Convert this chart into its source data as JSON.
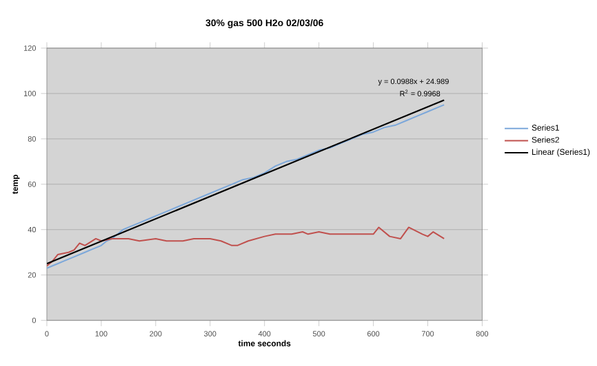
{
  "chart_data": {
    "type": "line",
    "title": "30% gas 500 H2o 02/03/06",
    "xlabel": "time seconds",
    "ylabel": "temp",
    "xlim": [
      0,
      800
    ],
    "xticks": [
      0,
      100,
      200,
      300,
      400,
      500,
      600,
      700,
      800
    ],
    "ylim": [
      0,
      120
    ],
    "yticks": [
      0,
      20,
      40,
      60,
      80,
      100,
      120
    ],
    "grid": "y",
    "legend": "right",
    "annotations": [
      "y = 0.0988x + 24.989",
      "R$^{2}$ = 0.9968"
    ],
    "series": [
      {
        "name": "Series1",
        "color": "#7ba7da",
        "x": [
          0,
          10,
          20,
          30,
          40,
          50,
          60,
          70,
          80,
          90,
          100,
          110,
          120,
          130,
          140,
          150,
          160,
          170,
          180,
          190,
          200,
          220,
          240,
          260,
          280,
          300,
          320,
          340,
          360,
          380,
          400,
          420,
          440,
          460,
          480,
          500,
          520,
          540,
          560,
          580,
          600,
          620,
          640,
          660,
          680,
          700,
          720,
          730
        ],
        "values": [
          23,
          24,
          25,
          26,
          27,
          28,
          29,
          30,
          31,
          32,
          33,
          35,
          36,
          38,
          40,
          41,
          42,
          43,
          44,
          45,
          46,
          48,
          50,
          52,
          54,
          56,
          58,
          60,
          62,
          63,
          65,
          68,
          70,
          71,
          73,
          75,
          76,
          78,
          80,
          82,
          83,
          85,
          86,
          88,
          90,
          92,
          94,
          95
        ]
      },
      {
        "name": "Series2",
        "color": "#c0504d",
        "x": [
          0,
          10,
          20,
          40,
          50,
          60,
          70,
          90,
          100,
          120,
          150,
          170,
          200,
          220,
          250,
          270,
          300,
          320,
          340,
          350,
          370,
          400,
          420,
          450,
          470,
          480,
          500,
          520,
          550,
          570,
          600,
          610,
          630,
          650,
          665,
          690,
          700,
          710,
          730
        ],
        "values": [
          24,
          26,
          29,
          30,
          31,
          34,
          33,
          36,
          35,
          36,
          36,
          35,
          36,
          35,
          35,
          36,
          36,
          35,
          33,
          33,
          35,
          37,
          38,
          38,
          39,
          38,
          39,
          38,
          38,
          38,
          38,
          41,
          37,
          36,
          41,
          38,
          37,
          39,
          36
        ]
      },
      {
        "name": "Linear (Series1)",
        "type": "line",
        "color": "#000000",
        "x": [
          0,
          730
        ],
        "values": [
          25.0,
          97.1
        ]
      }
    ]
  }
}
